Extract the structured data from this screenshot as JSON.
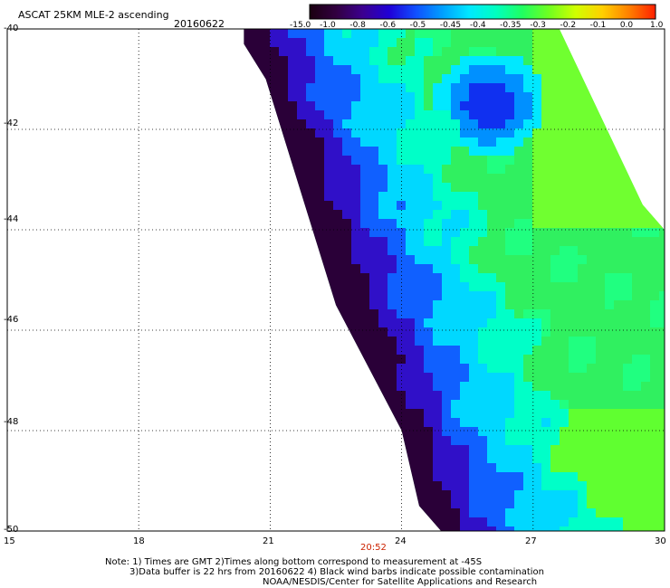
{
  "header": {
    "title": "ASCAT 25KM MLE-2 ascending",
    "date": "20160622"
  },
  "colorbar": {
    "labels": [
      "-15.0",
      "-1.0",
      "-0.8",
      "-0.6",
      "-0.5",
      "-0.45",
      "-0.4",
      "-0.35",
      "-0.3",
      "-0.2",
      "-0.1",
      "0.0",
      "1.0"
    ],
    "colors": [
      "#1a0010",
      "#320040",
      "#3c0090",
      "#2000d8",
      "#1050ff",
      "#00a0ff",
      "#00e8ff",
      "#00ffc0",
      "#20ff60",
      "#70ff20",
      "#d0ff00",
      "#ffd000",
      "#ff8000",
      "#ff2000"
    ]
  },
  "axes": {
    "x_ticks": [
      "15",
      "18",
      "21",
      "24",
      "27",
      "30"
    ],
    "y_ticks": [
      "-40",
      "-42",
      "-44",
      "-46",
      "-48",
      "-50"
    ],
    "lon_range": [
      15,
      30
    ],
    "lat_range": [
      -50,
      -40
    ]
  },
  "time_label": "20:52",
  "notes": {
    "line1": "Note: 1) Times are GMT 2)Times along bottom correspond to measurement at -45S",
    "line2": "3)Data buffer is 22 hrs from 20160622 4) Black wind barbs indicate possible contamination",
    "line3": "NOAA/NESDIS/Center for Satellite Applications and Research"
  },
  "style": {
    "time_color": "#cc2200",
    "grid_color": "#000000"
  }
}
